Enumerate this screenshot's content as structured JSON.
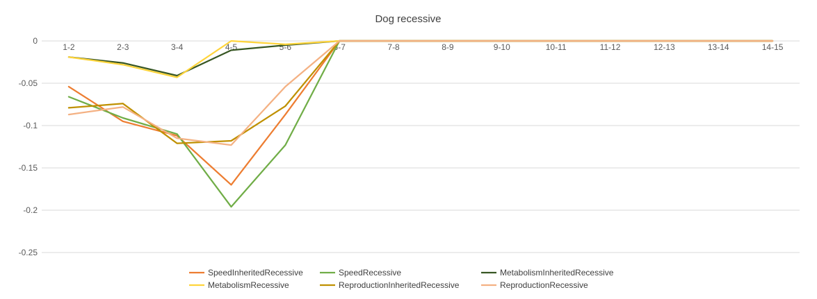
{
  "chart_data": {
    "type": "line",
    "title": "Dog recessive",
    "xlabel": "",
    "ylabel": "",
    "ylim": [
      -0.25,
      0
    ],
    "yticks": [
      0,
      -0.05,
      -0.1,
      -0.15,
      -0.2,
      -0.25
    ],
    "ytick_labels": [
      "0",
      "-0.05",
      "-0.1",
      "-0.15",
      "-0.2",
      "-0.25"
    ],
    "grid": true,
    "legend": "bottom",
    "categories": [
      "1-2",
      "2-3",
      "3-4",
      "4-5",
      "5-6",
      "6-7",
      "7-8",
      "8-9",
      "9-10",
      "10-11",
      "11-12",
      "12-13",
      "13-14",
      "14-15"
    ],
    "series": [
      {
        "name": "SpeedInheritedRecessive",
        "color": "#ED7D31",
        "values": [
          -0.054,
          -0.095,
          -0.112,
          -0.17,
          -0.087,
          0,
          0,
          0,
          0,
          0,
          0,
          0,
          0,
          0
        ]
      },
      {
        "name": "SpeedRecessive",
        "color": "#70AD47",
        "values": [
          -0.066,
          -0.091,
          -0.11,
          -0.196,
          -0.123,
          0,
          0,
          0,
          0,
          0,
          0,
          0,
          0,
          0
        ]
      },
      {
        "name": "MetabolismInheritedRecessive",
        "color": "#375623",
        "values": [
          -0.019,
          -0.026,
          -0.041,
          -0.011,
          -0.005,
          0,
          0,
          0,
          0,
          0,
          0,
          0,
          0,
          0
        ]
      },
      {
        "name": "MetabolismRecessive",
        "color": "#FFD43B",
        "values": [
          -0.019,
          -0.028,
          -0.043,
          0,
          -0.004,
          0,
          0,
          0,
          0,
          0,
          0,
          0,
          0,
          0
        ]
      },
      {
        "name": "ReproductionInheritedRecessive",
        "color": "#BF9000",
        "values": [
          -0.079,
          -0.074,
          -0.121,
          -0.118,
          -0.077,
          0,
          0,
          0,
          0,
          0,
          0,
          0,
          0,
          0
        ]
      },
      {
        "name": "ReproductionRecessive",
        "color": "#F4B183",
        "values": [
          -0.087,
          -0.078,
          -0.115,
          -0.123,
          -0.054,
          0,
          0,
          0,
          0,
          0,
          0,
          0,
          0,
          0
        ]
      }
    ]
  }
}
